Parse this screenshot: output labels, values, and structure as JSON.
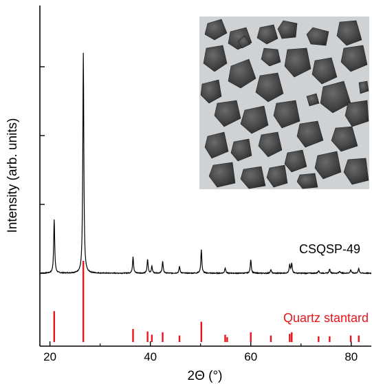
{
  "chart_data": {
    "type": "line",
    "title": "",
    "xlabel": "2Θ (°)",
    "ylabel": "Intensity (arb. units)",
    "xlim": [
      18,
      84
    ],
    "xticks": [
      "20",
      "40",
      "60",
      "80"
    ],
    "xtick_values": [
      20,
      40,
      60,
      80
    ],
    "colors": {
      "sample": "#000000",
      "reference": "#e8141c",
      "axes": "#000000"
    },
    "inset": {
      "type": "micrograph",
      "description_icon": "particle-micrograph-icon"
    },
    "annotations": [
      {
        "text": "CSQSP-49",
        "color": "#000000"
      },
      {
        "text": "Quartz stantard",
        "color": "#e8141c"
      }
    ],
    "series": [
      {
        "name": "CSQSP-49",
        "baseline_offset": 1.0,
        "peaks": [
          {
            "x": 20.85,
            "height": 0.78
          },
          {
            "x": 26.65,
            "height": 3.2
          },
          {
            "x": 36.55,
            "height": 0.24
          },
          {
            "x": 39.45,
            "height": 0.2
          },
          {
            "x": 40.3,
            "height": 0.1
          },
          {
            "x": 42.45,
            "height": 0.17
          },
          {
            "x": 45.8,
            "height": 0.1
          },
          {
            "x": 50.15,
            "height": 0.34
          },
          {
            "x": 54.9,
            "height": 0.08
          },
          {
            "x": 60.0,
            "height": 0.2
          },
          {
            "x": 64.0,
            "height": 0.05
          },
          {
            "x": 67.75,
            "height": 0.12
          },
          {
            "x": 68.15,
            "height": 0.14
          },
          {
            "x": 73.5,
            "height": 0.04
          },
          {
            "x": 75.7,
            "height": 0.06
          },
          {
            "x": 77.7,
            "height": 0.03
          },
          {
            "x": 79.9,
            "height": 0.05
          },
          {
            "x": 81.5,
            "height": 0.07
          }
        ]
      },
      {
        "name": "Quartz stantard",
        "type": "stick",
        "peaks": [
          {
            "x": 20.85,
            "height": 0.38
          },
          {
            "x": 26.65,
            "height": 1.0
          },
          {
            "x": 36.55,
            "height": 0.16
          },
          {
            "x": 39.45,
            "height": 0.13
          },
          {
            "x": 40.3,
            "height": 0.09
          },
          {
            "x": 42.45,
            "height": 0.12
          },
          {
            "x": 45.8,
            "height": 0.08
          },
          {
            "x": 50.15,
            "height": 0.25
          },
          {
            "x": 54.9,
            "height": 0.09
          },
          {
            "x": 55.3,
            "height": 0.06
          },
          {
            "x": 60.0,
            "height": 0.12
          },
          {
            "x": 64.0,
            "height": 0.08
          },
          {
            "x": 67.75,
            "height": 0.1
          },
          {
            "x": 68.15,
            "height": 0.12
          },
          {
            "x": 73.5,
            "height": 0.07
          },
          {
            "x": 75.7,
            "height": 0.07
          },
          {
            "x": 79.9,
            "height": 0.08
          },
          {
            "x": 81.5,
            "height": 0.08
          }
        ]
      }
    ]
  }
}
